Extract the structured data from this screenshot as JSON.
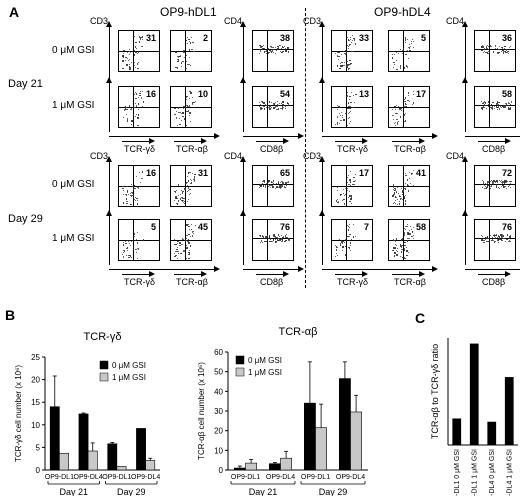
{
  "panel_a": {
    "letter": "A",
    "columns": [
      {
        "title": "OP9-hDL1"
      },
      {
        "title": "OP9-hDL4"
      }
    ],
    "days": [
      {
        "label": "Day 21",
        "conditions": [
          {
            "label": "0 μM GSI",
            "values": [
              [
                "31",
                "2",
                "38"
              ],
              [
                "33",
                "5",
                "36"
              ]
            ]
          },
          {
            "label": "1 μM GSI",
            "values": [
              [
                "16",
                "10",
                "54"
              ],
              [
                "13",
                "17",
                "58"
              ]
            ]
          }
        ]
      },
      {
        "label": "Day 29",
        "conditions": [
          {
            "label": "0 μM GSI",
            "values": [
              [
                "16",
                "31",
                "65"
              ],
              [
                "17",
                "41",
                "72"
              ]
            ]
          },
          {
            "label": "1 μM GSI",
            "values": [
              [
                "5",
                "45",
                "76"
              ],
              [
                "7",
                "58",
                "76"
              ]
            ]
          }
        ]
      }
    ],
    "axis_labels": {
      "cd3": "CD3",
      "cd4": "CD4",
      "tcr_gd": "TCR-γδ",
      "tcr_ab": "TCR-αβ",
      "cd8b": "CD8β"
    }
  },
  "panel_b": {
    "letter": "B",
    "legend": [
      "0 μM GSI",
      "1 μM GSI"
    ],
    "colors": {
      "gsi0": "#000000",
      "gsi1": "#c8c8c8"
    },
    "day_labels": [
      "Day 21",
      "Day 29"
    ],
    "tick_labels": [
      "OP9-DL1",
      "OP9-DL4",
      "OP9-DL1",
      "OP9-DL4"
    ]
  },
  "panel_c": {
    "letter": "C"
  },
  "chart_data": [
    {
      "type": "bar",
      "title": "TCR-γδ",
      "ylabel": "TCR-γδ cell number (x 10⁶)",
      "ylim": [
        0,
        25
      ],
      "yticks": [
        0,
        5,
        10,
        15,
        20,
        25
      ],
      "categories": [
        "OP9-DL1",
        "OP9-DL4",
        "OP9-DL1",
        "OP9-DL4"
      ],
      "series": [
        {
          "name": "0 μM GSI",
          "values": [
            14.0,
            12.4,
            5.8,
            9.2
          ],
          "errors": [
            6.8,
            0.2,
            0.3,
            0
          ]
        },
        {
          "name": "1 μM GSI",
          "values": [
            3.7,
            4.2,
            0.8,
            2.1
          ],
          "errors": [
            0,
            1.8,
            0,
            0.5
          ]
        }
      ],
      "legend_position": "top-right"
    },
    {
      "type": "bar",
      "title": "TCR-αβ",
      "ylabel": "TCR-αβ cell number (x 10⁶)",
      "ylim": [
        0,
        60
      ],
      "yticks": [
        0,
        10,
        20,
        30,
        40,
        50,
        60
      ],
      "categories": [
        "OP9-DL1",
        "OP9-DL4",
        "OP9-DL1",
        "OP9-DL4"
      ],
      "series": [
        {
          "name": "0 μM GSI",
          "values": [
            1.0,
            3.2,
            34.0,
            46.5
          ],
          "errors": [
            1.0,
            0.6,
            21.0,
            8.5
          ]
        },
        {
          "name": "1 μM GSI",
          "values": [
            3.5,
            6.0,
            21.5,
            29.5
          ],
          "errors": [
            1.8,
            3.5,
            12.0,
            8.5
          ]
        }
      ],
      "legend_position": "top-left"
    },
    {
      "type": "bar",
      "title": "",
      "ylabel": "TCR-αβ to TCR-γδ ratio",
      "categories": [
        "OP9-DL1  0 μM GSI",
        "OP9-DL1  1 μM GSI",
        "OP9-DL4  0 μM GSI",
        "OP9-DL4  1 μM GSI"
      ],
      "values": [
        5.7,
        21.8,
        5.0,
        14.6
      ],
      "ylim": [
        0,
        23
      ]
    }
  ]
}
